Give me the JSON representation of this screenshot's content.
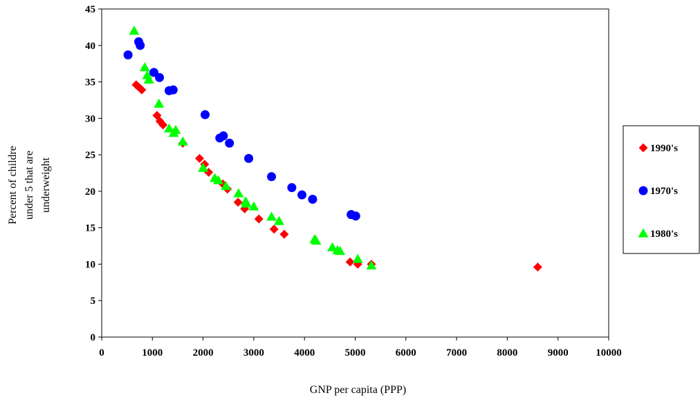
{
  "chart_data": {
    "type": "scatter",
    "title": "",
    "xlabel": "GNP per capita (PPP)",
    "ylabel_lines": [
      "Percent of childre",
      "under 5 that are",
      "underweight"
    ],
    "xlim": [
      0,
      10000
    ],
    "ylim": [
      0,
      45
    ],
    "xticks": [
      0,
      1000,
      2000,
      3000,
      4000,
      5000,
      6000,
      7000,
      8000,
      9000,
      10000
    ],
    "yticks": [
      0,
      5,
      10,
      15,
      20,
      25,
      30,
      35,
      40,
      45
    ],
    "grid": false,
    "legend_position": "right",
    "series": [
      {
        "name": "1990's",
        "marker": "diamond",
        "color": "#FF0000",
        "x": [
          680,
          730,
          790,
          1090,
          1150,
          1210,
          1600,
          1930,
          2030,
          2110,
          2390,
          2480,
          2690,
          2820,
          3100,
          3400,
          3600,
          4900,
          5050,
          5320,
          8600
        ],
        "y": [
          34.6,
          34.3,
          33.9,
          30.4,
          29.6,
          29.1,
          26.6,
          24.5,
          23.7,
          22.6,
          21.0,
          20.3,
          18.5,
          17.6,
          16.2,
          14.8,
          14.1,
          10.3,
          10.0,
          10.0,
          9.6
        ]
      },
      {
        "name": "1970's",
        "marker": "circle",
        "color": "#0000FF",
        "x": [
          520,
          730,
          760,
          1030,
          1140,
          1330,
          1410,
          2040,
          2330,
          2400,
          2520,
          2900,
          3350,
          3750,
          3950,
          4160,
          4920,
          5010
        ],
        "y": [
          38.7,
          40.5,
          40.0,
          36.3,
          35.6,
          33.8,
          33.9,
          30.5,
          27.3,
          27.6,
          26.6,
          24.5,
          22.0,
          20.5,
          19.5,
          18.9,
          16.8,
          16.6
        ]
      },
      {
        "name": "1980's",
        "marker": "triangle",
        "color": "#00FF00",
        "x": [
          640,
          850,
          900,
          930,
          1130,
          1330,
          1420,
          1460,
          1600,
          2000,
          2230,
          2300,
          2450,
          2700,
          2840,
          2850,
          3000,
          3350,
          3500,
          4200,
          4230,
          4550,
          4650,
          4700,
          5050,
          5320
        ],
        "y": [
          42.0,
          37.0,
          35.9,
          35.3,
          32.0,
          28.6,
          28.0,
          28.4,
          26.8,
          23.2,
          21.8,
          21.5,
          20.7,
          19.7,
          18.6,
          18.3,
          17.9,
          16.5,
          15.9,
          13.4,
          13.2,
          12.3,
          11.9,
          11.8,
          10.7,
          9.8
        ]
      }
    ]
  }
}
